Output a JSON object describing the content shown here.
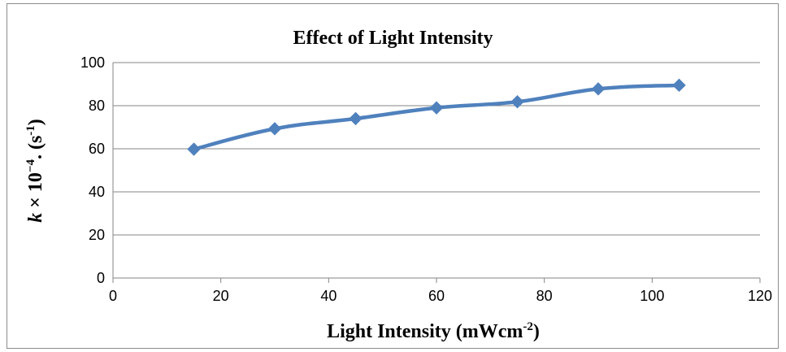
{
  "chart_data": {
    "type": "line",
    "title": "Effect of Light Intensity",
    "xlabel": "Light Intensity (mWcm-2)",
    "xlabel_main": "Light Intensity (mWcm",
    "xlabel_sup": "-2",
    "xlabel_close": ")",
    "ylabel": "k × 10-4. (s-1)",
    "ylabel_k": "k",
    "ylabel_times": " × 10",
    "ylabel_exp": "−4",
    "ylabel_unit": ". (s",
    "ylabel_unit_sup": "-1",
    "ylabel_close": ")",
    "xlim": [
      0,
      120
    ],
    "ylim": [
      0,
      100
    ],
    "xticks": [
      0,
      20,
      40,
      60,
      80,
      100,
      120
    ],
    "yticks": [
      0,
      20,
      40,
      60,
      80,
      100
    ],
    "grid": true,
    "legend": "none",
    "series": [
      {
        "color": "#4f81bd",
        "marker": "diamond",
        "x": [
          15,
          30,
          45,
          60,
          75,
          90,
          105
        ],
        "y": [
          59.8,
          69.3,
          74.0,
          79.0,
          81.8,
          87.8,
          89.5
        ]
      }
    ]
  }
}
